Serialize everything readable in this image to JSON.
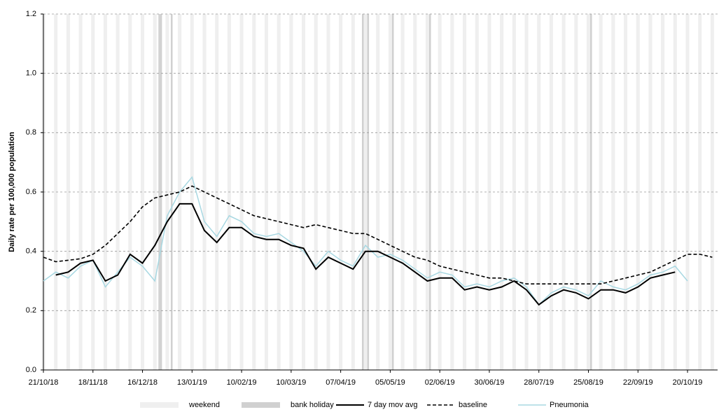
{
  "chart_data": {
    "type": "line",
    "y_label": "Daily rate per 100,000 population",
    "x": [
      "21/10/18",
      "28/10/18",
      "04/11/18",
      "11/11/18",
      "18/11/18",
      "25/11/18",
      "02/12/18",
      "09/12/18",
      "16/12/18",
      "23/12/18",
      "30/12/18",
      "06/01/19",
      "13/01/19",
      "20/01/19",
      "27/01/19",
      "03/02/19",
      "10/02/19",
      "17/02/19",
      "24/02/19",
      "03/03/19",
      "10/03/19",
      "17/03/19",
      "24/03/19",
      "31/03/19",
      "07/04/19",
      "14/04/19",
      "21/04/19",
      "28/04/19",
      "05/05/19",
      "12/05/19",
      "19/05/19",
      "26/05/19",
      "02/06/19",
      "09/06/19",
      "16/06/19",
      "23/06/19",
      "30/06/19",
      "07/07/19",
      "14/07/19",
      "21/07/19",
      "28/07/19",
      "04/08/19",
      "11/08/19",
      "18/08/19",
      "25/08/19",
      "01/09/19",
      "08/09/19",
      "15/09/19",
      "22/09/19",
      "29/09/19",
      "06/10/19",
      "13/10/19",
      "20/10/19",
      "27/10/19",
      "03/11/19"
    ],
    "xlim": [
      "21/10/18",
      "06/11/19"
    ],
    "xticks": [
      "21/10/18",
      "18/11/18",
      "16/12/18",
      "13/01/19",
      "10/02/19",
      "10/03/19",
      "07/04/19",
      "05/05/19",
      "02/06/19",
      "30/06/19",
      "28/07/19",
      "25/08/19",
      "22/09/19",
      "20/10/19"
    ],
    "ylim": [
      0,
      1.2
    ],
    "yticks": [
      {
        "value": 0,
        "label": "0.0"
      },
      0.2,
      0.4,
      0.6,
      0.8,
      {
        "value": 1,
        "label": "1.0"
      },
      1.2
    ],
    "grid": true,
    "shading": [
      {
        "name": "weekend",
        "color": "#efefef"
      },
      {
        "name": "bank holiday",
        "color": "#d0d0d0",
        "dates": [
          "25/12/18",
          "26/12/18",
          "01/01/19",
          "19/04/19",
          "22/04/19",
          "06/05/19",
          "27/05/19",
          "26/08/19"
        ]
      }
    ],
    "series": [
      {
        "name": "7 day mov avg",
        "color": "#000000",
        "dash": false,
        "width": 2,
        "values": [
          null,
          0.32,
          0.33,
          0.36,
          0.37,
          0.3,
          0.32,
          0.39,
          0.36,
          0.42,
          0.5,
          0.56,
          0.56,
          0.47,
          0.43,
          0.48,
          0.48,
          0.45,
          0.44,
          0.44,
          0.42,
          0.41,
          0.34,
          0.38,
          0.36,
          0.34,
          0.4,
          0.4,
          0.38,
          0.36,
          0.33,
          0.3,
          0.31,
          0.31,
          0.27,
          0.28,
          0.27,
          0.28,
          0.3,
          0.27,
          0.22,
          0.25,
          0.27,
          0.26,
          0.24,
          0.27,
          0.27,
          0.26,
          0.28,
          0.31,
          0.32,
          0.33,
          null,
          null,
          null
        ]
      },
      {
        "name": "baseline",
        "color": "#000000",
        "dash": true,
        "width": 1.6,
        "values": [
          0.38,
          0.365,
          0.37,
          0.375,
          0.39,
          0.42,
          0.46,
          0.5,
          0.55,
          0.58,
          0.59,
          0.6,
          0.62,
          0.6,
          0.58,
          0.56,
          0.54,
          0.52,
          0.51,
          0.5,
          0.49,
          0.48,
          0.49,
          0.48,
          0.47,
          0.46,
          0.46,
          0.44,
          0.42,
          0.4,
          0.38,
          0.37,
          0.35,
          0.34,
          0.33,
          0.32,
          0.31,
          0.31,
          0.3,
          0.29,
          0.29,
          0.29,
          0.29,
          0.29,
          0.29,
          0.29,
          0.3,
          0.31,
          0.32,
          0.33,
          0.35,
          0.37,
          0.39,
          0.39,
          0.38
        ]
      },
      {
        "name": "Pneumonia",
        "color": "#a8d8e2",
        "dash": false,
        "width": 1.5,
        "values": [
          0.3,
          0.33,
          0.31,
          0.35,
          0.37,
          0.28,
          0.33,
          0.38,
          0.35,
          0.3,
          0.52,
          0.6,
          0.65,
          0.5,
          0.45,
          0.52,
          0.5,
          0.46,
          0.45,
          0.46,
          0.43,
          0.4,
          0.35,
          0.4,
          0.37,
          0.35,
          0.42,
          0.38,
          0.39,
          0.37,
          0.34,
          0.31,
          0.33,
          0.32,
          0.28,
          0.29,
          0.28,
          0.3,
          0.31,
          0.28,
          0.22,
          0.26,
          0.28,
          0.27,
          0.25,
          0.3,
          0.28,
          0.27,
          0.29,
          0.32,
          0.33,
          0.35,
          0.3,
          null,
          null
        ]
      }
    ]
  }
}
